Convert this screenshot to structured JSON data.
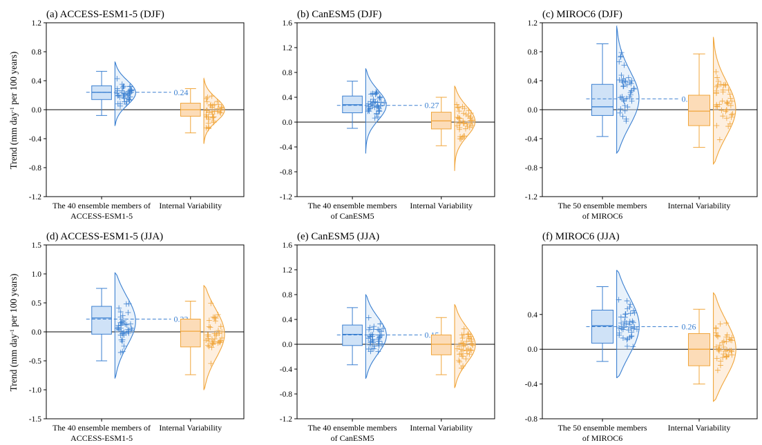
{
  "ylabel": {
    "pre": "Trend (mm day",
    "sup": "-1",
    "post": " per 100 years)"
  },
  "colors": {
    "model_line": "#3a7fd0",
    "model_fill": "#cfe2f7",
    "iv_line": "#f0a53a",
    "iv_fill": "#fcdcb8",
    "zero_line": "#000000"
  },
  "chart_data": [
    {
      "id": "a",
      "title": "(a) ACCESS-ESM1-5 (DJF)",
      "type": "box-violin",
      "ylim": [
        -1.2,
        1.2
      ],
      "yticks": [
        "1.2",
        "0.8",
        "0.4",
        "0.0",
        "-0.4",
        "-0.8",
        "-1.2"
      ],
      "categories": [
        [
          "The 40 ensemble members of",
          "ACCESS-ESM1-5"
        ],
        [
          "Internal Variability"
        ]
      ],
      "series": [
        {
          "box": {
            "min": -0.08,
            "q1": 0.14,
            "median": 0.24,
            "q3": 0.33,
            "max": 0.53
          },
          "violin": [
            -0.22,
            0.66
          ],
          "mean_label": "0.24",
          "mean": 0.24
        },
        {
          "box": {
            "min": -0.32,
            "q1": -0.09,
            "median": 0.0,
            "q3": 0.09,
            "max": 0.29
          },
          "violin": [
            -0.47,
            0.43
          ]
        }
      ]
    },
    {
      "id": "b",
      "title": "(b) CanESM5 (DJF)",
      "type": "box-violin",
      "ylim": [
        -1.2,
        1.6
      ],
      "yticks": [
        "1.6",
        "1.2",
        "0.8",
        "0.4",
        "0.0",
        "-0.4",
        "-0.8",
        "-1.2"
      ],
      "categories": [
        [
          "The 40 ensemble members",
          "of CanESM5"
        ],
        [
          "Internal Variability"
        ]
      ],
      "series": [
        {
          "box": {
            "min": -0.1,
            "q1": 0.15,
            "median": 0.28,
            "q3": 0.42,
            "max": 0.66
          },
          "violin": [
            -0.5,
            0.86
          ],
          "mean_label": "0.27",
          "mean": 0.27
        },
        {
          "box": {
            "min": -0.38,
            "q1": -0.11,
            "median": 0.02,
            "q3": 0.16,
            "max": 0.4
          },
          "violin": [
            -0.78,
            0.58
          ]
        }
      ]
    },
    {
      "id": "c",
      "title": "(c) MIROC6 (DJF)",
      "type": "box-violin",
      "ylim": [
        -1.2,
        1.2
      ],
      "yticks": [
        "1.2",
        "0.8",
        "0.4",
        "0.0",
        "-0.4",
        "-0.8",
        "-1.2"
      ],
      "categories": [
        [
          "The 50 ensemble members",
          "of MIROC6"
        ],
        [
          "Internal Variability"
        ]
      ],
      "series": [
        {
          "box": {
            "min": -0.37,
            "q1": -0.08,
            "median": 0.04,
            "q3": 0.35,
            "max": 0.91
          },
          "violin": [
            -0.6,
            1.15
          ],
          "mean_label": "0.15",
          "mean": 0.15
        },
        {
          "box": {
            "min": -0.52,
            "q1": -0.22,
            "median": -0.02,
            "q3": 0.2,
            "max": 0.77
          },
          "violin": [
            -0.75,
            1.0
          ]
        }
      ]
    },
    {
      "id": "d",
      "title": "(d) ACCESS-ESM1-5 (JJA)",
      "type": "box-violin",
      "ylim": [
        -1.5,
        1.5
      ],
      "yticks": [
        "1.5",
        "1.0",
        "0.5",
        "0.0",
        "-0.5",
        "-1.0",
        "-1.5"
      ],
      "categories": [
        [
          "The 40 ensemble members of",
          "ACCESS-ESM1-5"
        ],
        [
          "Internal Variability"
        ]
      ],
      "series": [
        {
          "box": {
            "min": -0.5,
            "q1": -0.04,
            "median": 0.24,
            "q3": 0.44,
            "max": 0.75
          },
          "violin": [
            -0.8,
            1.02
          ],
          "mean_label": "0.22",
          "mean": 0.22
        },
        {
          "box": {
            "min": -0.74,
            "q1": -0.26,
            "median": 0.01,
            "q3": 0.22,
            "max": 0.53
          },
          "violin": [
            -1.0,
            0.8
          ]
        }
      ]
    },
    {
      "id": "e",
      "title": "(e) CanESM5 (JJA)",
      "type": "box-violin",
      "ylim": [
        -1.2,
        1.6
      ],
      "yticks": [
        "1.6",
        "1.2",
        "0.8",
        "0.4",
        "0.0",
        "-0.4",
        "-0.8",
        "-1.2"
      ],
      "categories": [
        [
          "The 40 ensemble members",
          "of CanESM5"
        ],
        [
          "Internal Variability"
        ]
      ],
      "series": [
        {
          "box": {
            "min": -0.33,
            "q1": -0.02,
            "median": 0.16,
            "q3": 0.31,
            "max": 0.59
          },
          "violin": [
            -0.55,
            0.8
          ],
          "mean_label": "0.15",
          "mean": 0.15
        },
        {
          "box": {
            "min": -0.49,
            "q1": -0.17,
            "median": 0.0,
            "q3": 0.15,
            "max": 0.43
          },
          "violin": [
            -0.7,
            0.64
          ]
        }
      ]
    },
    {
      "id": "f",
      "title": "(f) MIROC6 (JJA)",
      "type": "box-violin",
      "ylim": [
        -0.8,
        1.2
      ],
      "yticks": [
        "0.4",
        "0.0",
        "-0.4",
        "-0.8"
      ],
      "categories": [
        [
          "The 50 ensemble members",
          "of MIROC6"
        ],
        [
          "Internal Variability"
        ]
      ],
      "series": [
        {
          "box": {
            "min": -0.14,
            "q1": 0.07,
            "median": 0.27,
            "q3": 0.45,
            "max": 0.72
          },
          "violin": [
            -0.33,
            0.91
          ],
          "mean_label": "0.26",
          "mean": 0.26
        },
        {
          "box": {
            "min": -0.4,
            "q1": -0.19,
            "median": 0.0,
            "q3": 0.18,
            "max": 0.46
          },
          "violin": [
            -0.6,
            0.65
          ]
        }
      ]
    }
  ]
}
